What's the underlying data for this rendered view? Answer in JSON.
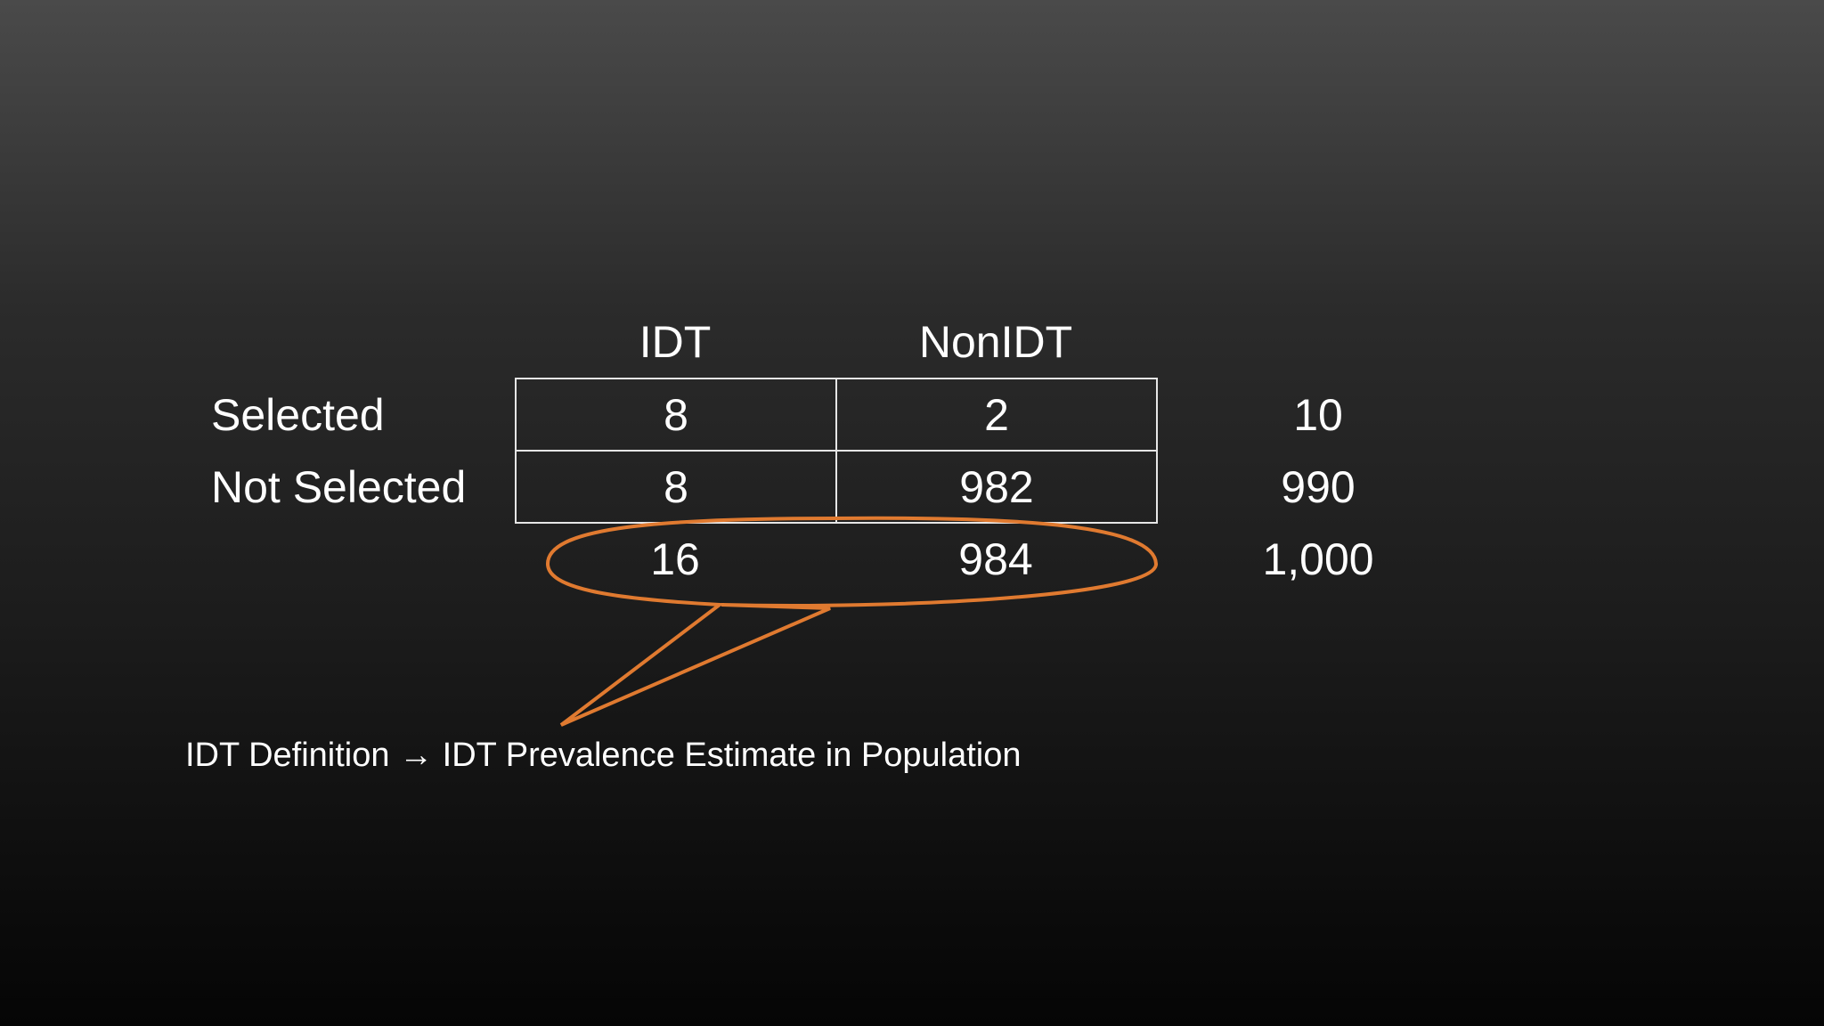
{
  "table": {
    "columns": [
      "IDT",
      "NonIDT"
    ],
    "rows": [
      {
        "label": "Selected",
        "idt": "8",
        "nonidt": "2",
        "total": "10"
      },
      {
        "label": "Not Selected",
        "idt": "8",
        "nonidt": "982",
        "total": "990"
      }
    ],
    "totals": {
      "idt": "16",
      "nonidt": "984",
      "grand": "1,000"
    }
  },
  "callout": {
    "color": "#e07a30"
  },
  "caption": {
    "left": "IDT Definition",
    "arrow": "→",
    "right": "IDT Prevalence Estimate in Population"
  }
}
